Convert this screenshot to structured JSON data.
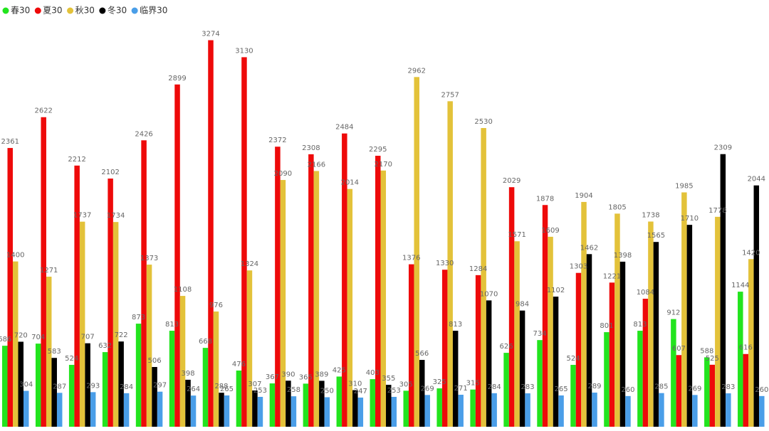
{
  "chart_data": {
    "type": "bar",
    "categories": [
      null,
      null,
      null,
      null,
      null,
      null,
      null,
      null,
      null,
      null,
      null,
      null,
      null,
      null,
      null,
      null,
      null,
      null,
      null,
      null,
      null,
      null,
      null
    ],
    "series": [
      {
        "name": "春30",
        "color": "#22e41e",
        "values": [
          686,
          704,
          524,
          632,
          873,
          813,
          668,
          476,
          367,
          365,
          425,
          403,
          305,
          325,
          315,
          626,
          734,
          524,
          801,
          813,
          912,
          588,
          1144
        ]
      },
      {
        "name": "夏30",
        "color": "#ee0a0a",
        "values": [
          2361,
          2622,
          2212,
          2102,
          2426,
          2899,
          3274,
          3130,
          2372,
          2308,
          2484,
          2295,
          1376,
          1330,
          1284,
          2029,
          1878,
          1303,
          1221,
          1084,
          607,
          525,
          616
        ]
      },
      {
        "name": "秋30",
        "color": "#e3c23a",
        "values": [
          1400,
          1271,
          1737,
          1734,
          1373,
          1108,
          976,
          1324,
          2090,
          2166,
          2014,
          2170,
          2962,
          2757,
          2530,
          1571,
          1609,
          1904,
          1805,
          1738,
          1985,
          1778,
          1420
        ]
      },
      {
        "name": "冬30",
        "color": "#000000",
        "values": [
          720,
          583,
          707,
          722,
          506,
          398,
          288,
          307,
          390,
          389,
          310,
          355,
          566,
          813,
          1070,
          984,
          1102,
          1462,
          1398,
          1565,
          1710,
          2309,
          2044
        ]
      },
      {
        "name": "临界30",
        "color": "#4a9ee8",
        "values": [
          304,
          287,
          293,
          284,
          297,
          264,
          265,
          253,
          258,
          250,
          247,
          253,
          269,
          271,
          284,
          283,
          265,
          289,
          260,
          285,
          269,
          283,
          260
        ]
      }
    ],
    "ylim": [
      0,
      3500
    ],
    "legend": "top-left"
  }
}
